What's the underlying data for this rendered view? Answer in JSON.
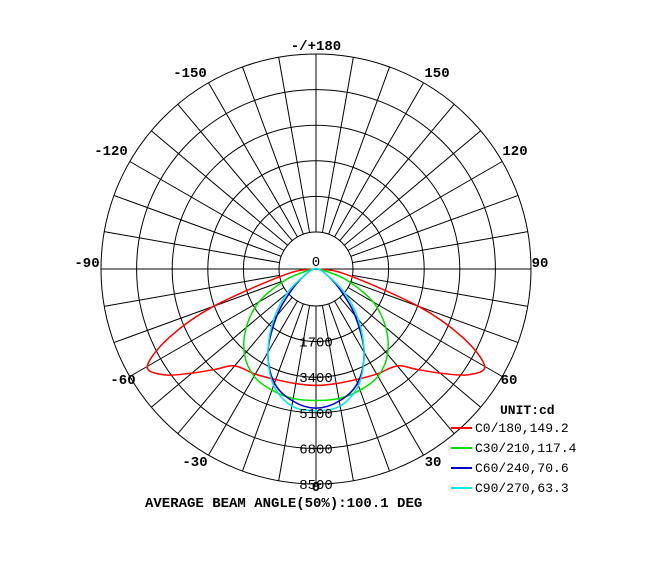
{
  "chart_data": {
    "type": "polar",
    "title": "",
    "angle_labels": [
      "-/+180",
      "150",
      "120",
      "90",
      "60",
      "30",
      "0",
      "-30",
      "-60",
      "-90",
      "-120",
      "-150"
    ],
    "radial_tick_labels": [
      "0",
      "1700",
      "3400",
      "5100",
      "6800",
      "8500"
    ],
    "rmax": 8500,
    "unit_label": "UNIT:cd",
    "series": [
      {
        "name": "C0/180,149.2",
        "color": "#ff0000",
        "angles": [
          -90,
          -80,
          -70,
          -65,
          -60,
          -55,
          -50,
          -45,
          -40,
          -30,
          -20,
          -10,
          0,
          10,
          20,
          30,
          40,
          45,
          50,
          55,
          60,
          65,
          70,
          80,
          90
        ],
        "values": [
          0,
          1200,
          4300,
          6400,
          7700,
          7300,
          6400,
          5600,
          5000,
          4800,
          4650,
          4600,
          4600,
          4600,
          4650,
          4800,
          5000,
          5600,
          6400,
          7300,
          7700,
          6400,
          4300,
          1200,
          0
        ]
      },
      {
        "name": "C30/210,117.4",
        "color": "#00e000",
        "angles": [
          -90,
          -80,
          -70,
          -60,
          -50,
          -40,
          -30,
          -20,
          -10,
          0,
          10,
          20,
          30,
          40,
          50,
          60,
          70,
          80,
          90
        ],
        "values": [
          0,
          300,
          1300,
          2600,
          3600,
          4400,
          4900,
          5100,
          5200,
          5200,
          5200,
          5100,
          4900,
          4400,
          3600,
          2600,
          1300,
          300,
          0
        ]
      },
      {
        "name": "C60/240,70.6",
        "color": "#0000c8",
        "angles": [
          -90,
          -70,
          -50,
          -40,
          -30,
          -20,
          -10,
          0,
          10,
          20,
          30,
          40,
          50,
          70,
          90
        ],
        "values": [
          0,
          300,
          1200,
          2400,
          3800,
          4800,
          5300,
          5500,
          5300,
          4800,
          3800,
          2400,
          1200,
          300,
          0
        ]
      },
      {
        "name": "C90/270,63.3",
        "color": "#00e8e8",
        "angles": [
          -90,
          -70,
          -50,
          -40,
          -30,
          -20,
          -10,
          0,
          10,
          20,
          30,
          40,
          50,
          70,
          90
        ],
        "values": [
          0,
          300,
          1500,
          2600,
          3800,
          4900,
          5500,
          5600,
          5500,
          4900,
          3800,
          2600,
          1500,
          300,
          0
        ]
      }
    ],
    "footer": "AVERAGE BEAM ANGLE(50%):100.1 DEG"
  }
}
